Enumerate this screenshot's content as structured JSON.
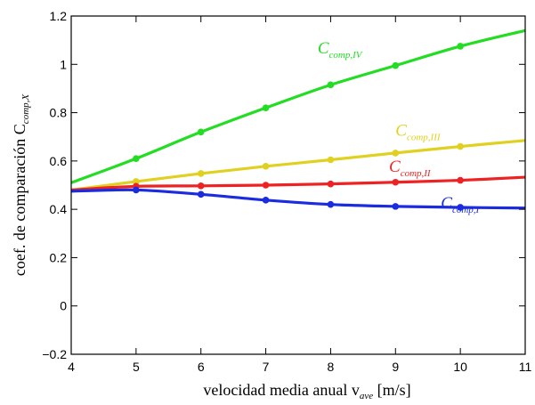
{
  "chart_data": {
    "type": "line",
    "xlabel": "velocidad media anual v",
    "xlabel_sub": "ave",
    "xlabel_unit": " [m/s]",
    "ylabel": "coef. de comparación C",
    "ylabel_sub": "comp,X",
    "xlim": [
      4,
      11
    ],
    "ylim": [
      -0.2,
      1.2
    ],
    "xticks": [
      4,
      5,
      6,
      7,
      8,
      9,
      10,
      11
    ],
    "yticks": [
      -0.2,
      0,
      0.2,
      0.4,
      0.6,
      0.8,
      1,
      1.2
    ],
    "ytick_labels": [
      "−0.2",
      "0",
      "0.2",
      "0.4",
      "0.6",
      "0.8",
      "1",
      "1.2"
    ],
    "grid": false,
    "series": [
      {
        "name": "C",
        "name_sub": "comp,IV",
        "color": "#22dd22",
        "x": [
          4,
          5,
          6,
          7,
          8,
          9,
          10,
          11
        ],
        "values": [
          0.51,
          0.61,
          0.72,
          0.82,
          0.915,
          0.995,
          1.075,
          1.14
        ],
        "markers_x": [
          5,
          6,
          7,
          8,
          9,
          10
        ]
      },
      {
        "name": "C",
        "name_sub": "comp,III",
        "color": "#e0d020",
        "x": [
          4,
          5,
          6,
          7,
          8,
          9,
          10,
          11
        ],
        "values": [
          0.48,
          0.515,
          0.548,
          0.578,
          0.605,
          0.633,
          0.66,
          0.685
        ],
        "markers_x": [
          5,
          6,
          7,
          8,
          9,
          10
        ]
      },
      {
        "name": "C",
        "name_sub": "comp,II",
        "color": "#ee2222",
        "x": [
          4,
          5,
          6,
          7,
          8,
          9,
          10,
          11
        ],
        "values": [
          0.48,
          0.495,
          0.497,
          0.5,
          0.505,
          0.512,
          0.52,
          0.533
        ],
        "markers_x": [
          5,
          6,
          7,
          8,
          9,
          10
        ]
      },
      {
        "name": "C",
        "name_sub": "comp,I",
        "color": "#1a2be0",
        "x": [
          4,
          5,
          6,
          7,
          8,
          9,
          10,
          11
        ],
        "values": [
          0.475,
          0.48,
          0.462,
          0.438,
          0.42,
          0.412,
          0.408,
          0.405
        ],
        "markers_x": [
          5,
          6,
          7,
          8,
          9,
          10
        ]
      }
    ]
  }
}
